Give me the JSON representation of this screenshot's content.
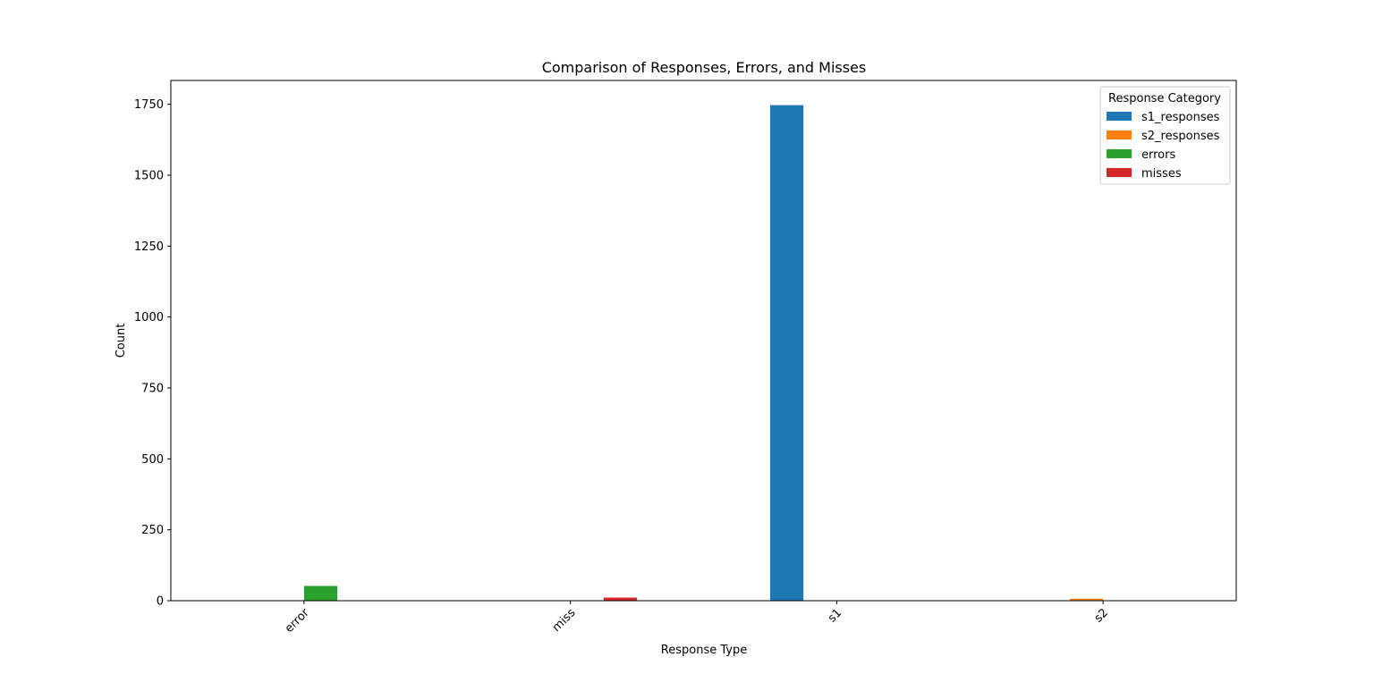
{
  "chart_data": {
    "type": "bar",
    "title": "Comparison of Responses, Errors, and Misses",
    "xlabel": "Response Type",
    "ylabel": "Count",
    "categories": [
      "error",
      "miss",
      "s1",
      "s2"
    ],
    "series": [
      {
        "name": "s1_responses",
        "color": "#1f77b4",
        "values": [
          0,
          0,
          1747,
          0
        ]
      },
      {
        "name": "s2_responses",
        "color": "#ff7f0e",
        "values": [
          0,
          0,
          0,
          7
        ]
      },
      {
        "name": "errors",
        "color": "#2ca02c",
        "values": [
          52,
          0,
          0,
          0
        ]
      },
      {
        "name": "misses",
        "color": "#d62728",
        "values": [
          0,
          11,
          0,
          0
        ]
      }
    ],
    "ylim": [
      0,
      1834
    ],
    "yticks": [
      0,
      250,
      500,
      750,
      1000,
      1250,
      1500,
      1750
    ],
    "xtick_rotation_deg": 45,
    "grid": false,
    "legend": {
      "title": "Response Category",
      "placement": "top-right"
    }
  }
}
